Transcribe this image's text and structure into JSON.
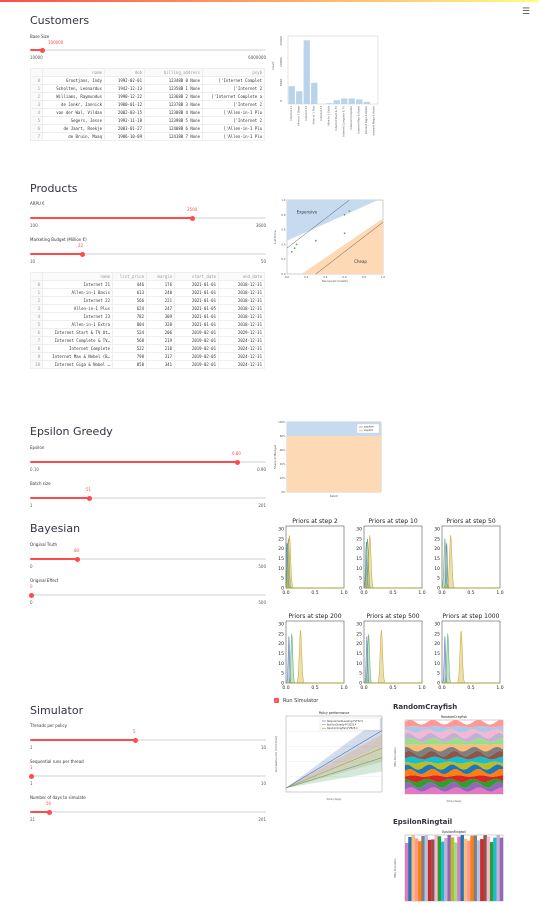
{
  "app": {
    "menu_icon": "hamburger-menu-icon",
    "accent": "#ff4b4b"
  },
  "customers": {
    "title": "Customers",
    "slider": {
      "label": "Base Size",
      "value": "100000",
      "value_frac": 0.05,
      "min": "10000",
      "max": "6000000"
    },
    "table": {
      "columns": [
        "",
        "name",
        "dob",
        "billing_address",
        "psyb"
      ],
      "rows": [
        [
          "0",
          "Grootjans, Indy",
          "1992-02-01",
          "12348B 0 None",
          "['Internet Complet"
        ],
        [
          "1",
          "Scholten, Leonardus",
          "1942-12-13",
          "12358B 1 None",
          "['Internet 2"
        ],
        [
          "2",
          "Williams, Raymundus",
          "1990-12-22",
          "12368B 2 None",
          "['Internet Complete a"
        ],
        [
          "3",
          "de Jonkr, Jannick",
          "1980-01-12",
          "12378B 3 None",
          "['Internet 2"
        ],
        [
          "4",
          "van der Wal, Vildan",
          "2002-03-15",
          "12388B 4 None",
          "['Allen-in-1 Plu"
        ],
        [
          "5",
          "Segers, Jesse",
          "1992-11-18",
          "12398B 5 None",
          "['Internet 2"
        ],
        [
          "6",
          "de Jaart, Roekje",
          "2003-01-27",
          "12408B 6 None",
          "['Allen-in-1 Plu"
        ],
        [
          "7",
          "de Bruin, Maaq",
          "1986-10-09",
          "12418B 7 None",
          "['Allen-in-1 Plu"
        ]
      ]
    },
    "chart_data": {
      "type": "bar",
      "categories": [
        "Internet 21",
        "Allen-in-1 Basis",
        "Internet 22",
        "Allen-in-1 Plus",
        "Internet 23",
        "Allen-in-1 Extra",
        "Internet Start & TV",
        "Internet Complete & TV",
        "Internet Complete",
        "Internet Max & Nobel",
        "Internet Giga & Nobel",
        "Internet Mega & Nobel"
      ],
      "values": [
        4200,
        3000,
        15000,
        5000,
        0,
        200,
        900,
        1300,
        1300,
        1100,
        500,
        0
      ],
      "ylabel": "count",
      "yticks": [
        "0",
        "5000",
        "10000",
        "15000"
      ],
      "ylim": [
        0,
        16000
      ]
    }
  },
  "products": {
    "title": "Products",
    "slider1": {
      "label": "ARPU €",
      "value": "2500",
      "value_frac": 0.68,
      "min": "100",
      "max": "3600"
    },
    "slider2": {
      "label": "Marketing Budget (Million €)",
      "value": "22",
      "value_frac": 0.2,
      "min": "10",
      "max": "50"
    },
    "table": {
      "columns": [
        "",
        "name",
        "list_price",
        "margin",
        "start_date",
        "end_date"
      ],
      "rows": [
        [
          "0",
          "Internet 21",
          "446",
          "176",
          "2021-01-01",
          "2018-12-31"
        ],
        [
          "1",
          "Allen-in-1 Basis",
          "613",
          "240",
          "2021-01-01",
          "2018-12-31"
        ],
        [
          "2",
          "Internet 22",
          "566",
          "221",
          "2021-01-01",
          "2018-12-31"
        ],
        [
          "3",
          "Allen-in-1 Plus",
          "624",
          "247",
          "2021-01-05",
          "2018-12-31"
        ],
        [
          "4",
          "Internet 23",
          "782",
          "309",
          "2021-01-01",
          "2018-12-31"
        ],
        [
          "5",
          "Allen-in-1 Extra",
          "804",
          "320",
          "2021-01-01",
          "2018-12-31"
        ],
        [
          "6",
          "Internet Start & TV Ut…",
          "524",
          "206",
          "2019-02-01",
          "2029-12-31"
        ],
        [
          "7",
          "Internet Complete & TV…",
          "568",
          "219",
          "2019-02-01",
          "2024-12-31"
        ],
        [
          "8",
          "Internet Complete",
          "522",
          "210",
          "2019-02-01",
          "2024-12-31"
        ],
        [
          "9",
          "Internet Max & Nobel (B…",
          "798",
          "317",
          "2019-02-05",
          "2024-12-31"
        ],
        [
          "10",
          "Internet Giga & Nobel …",
          "858",
          "341",
          "2019-02-01",
          "2024-12-31"
        ]
      ]
    },
    "chart_data": {
      "type": "scatter",
      "labels": {
        "upper": "Expensive",
        "lower": "Cheap"
      },
      "xlabel": "Perceived Quality",
      "ylabel": "List Price",
      "xticks": [
        "0.0",
        "0.2",
        "0.4",
        "0.6",
        "0.8",
        "1.0"
      ],
      "yticks": [
        "0.0",
        "0.2",
        "0.4",
        "0.6",
        "0.8",
        "1.0"
      ],
      "x": [
        0.05,
        0.08,
        0.1,
        0.3,
        0.6,
        0.6,
        0.65
      ],
      "y": [
        0.3,
        0.35,
        0.4,
        0.45,
        0.55,
        0.8,
        0.85
      ],
      "colors": {
        "upper": "#c6dbef",
        "lower": "#fdd9b5",
        "point": "#4daf4a"
      }
    }
  },
  "epsilon": {
    "title": "Epsilon Greedy",
    "slider1": {
      "label": "Epsilon",
      "value": "0.80",
      "value_frac": 0.88,
      "min": "0.10",
      "max": "0.90"
    },
    "slider2": {
      "label": "Batch size",
      "value": "51",
      "value_frac": 0.25,
      "min": "1",
      "max": "201"
    },
    "chart_data": {
      "type": "area",
      "series": [
        {
          "name": "explore",
          "value": 0.2,
          "color": "#c6dbef"
        },
        {
          "name": "exploit",
          "value": 0.8,
          "color": "#fdd9b5"
        }
      ],
      "xlabel": "batch",
      "ylabel": "Share of Budget",
      "yticks": [
        "0%",
        "20%",
        "40%",
        "60%",
        "80%",
        "100%"
      ],
      "ylim": [
        0,
        1
      ]
    }
  },
  "bayesian": {
    "title": "Bayesian",
    "slider1": {
      "label": "Original Truth",
      "value": "80",
      "value_frac": 0.16,
      "min": "0",
      "max": "500"
    },
    "slider2": {
      "label": "Original Effect",
      "value": "0",
      "value_frac": 0.0,
      "min": "0",
      "max": "500"
    },
    "chart_data": {
      "type": "line",
      "panels": [
        {
          "title": "Priors at step 2"
        },
        {
          "title": "Priors at step 10"
        },
        {
          "title": "Priors at step 50"
        },
        {
          "title": "Priors at step 200"
        },
        {
          "title": "Priors at step 500"
        },
        {
          "title": "Priors at step 1000"
        }
      ],
      "xticks": [
        "0.0",
        "0.5",
        "1.0"
      ],
      "yticks": [
        "0",
        "5",
        "10",
        "15",
        "20",
        "25",
        "30"
      ],
      "colors": [
        "#4c72b0",
        "#55a868",
        "#c8a21b",
        "#2ca02c"
      ]
    }
  },
  "simulator": {
    "title": "Simulator",
    "run_checkbox": "Run Simulator",
    "slider1": {
      "label": "Threads per policy",
      "value": "5",
      "value_frac": 0.44,
      "min": "1",
      "max": "10"
    },
    "slider2": {
      "label": "Sequential runs per thread",
      "value": "1",
      "value_frac": 0.0,
      "min": "1",
      "max": "10"
    },
    "slider3": {
      "label": "Number of days to simulate",
      "value": "50",
      "value_frac": 0.08,
      "min": "21",
      "max": "201"
    },
    "policy_chart": {
      "title": "Policy performance",
      "legend": [
        "RequirementLeveling-FVF32.5",
        "EpsilonGreedy-FV2025.4",
        "RandomCrayfish-FVB25.4"
      ],
      "ylabel": "Cumulative CLV (1000 Euro)",
      "xlabel": "time (days)"
    },
    "random_crayfish": {
      "heading": "RandomCrayfish",
      "title": "RandomCrayfish",
      "ylabel": "NBA Allocation",
      "xlabel": "time (days)"
    },
    "epsilon_ringtail": {
      "heading": "EpsilonRingtail",
      "title": "EpsilonRingtail",
      "ylabel": "NBA Allocation"
    }
  }
}
